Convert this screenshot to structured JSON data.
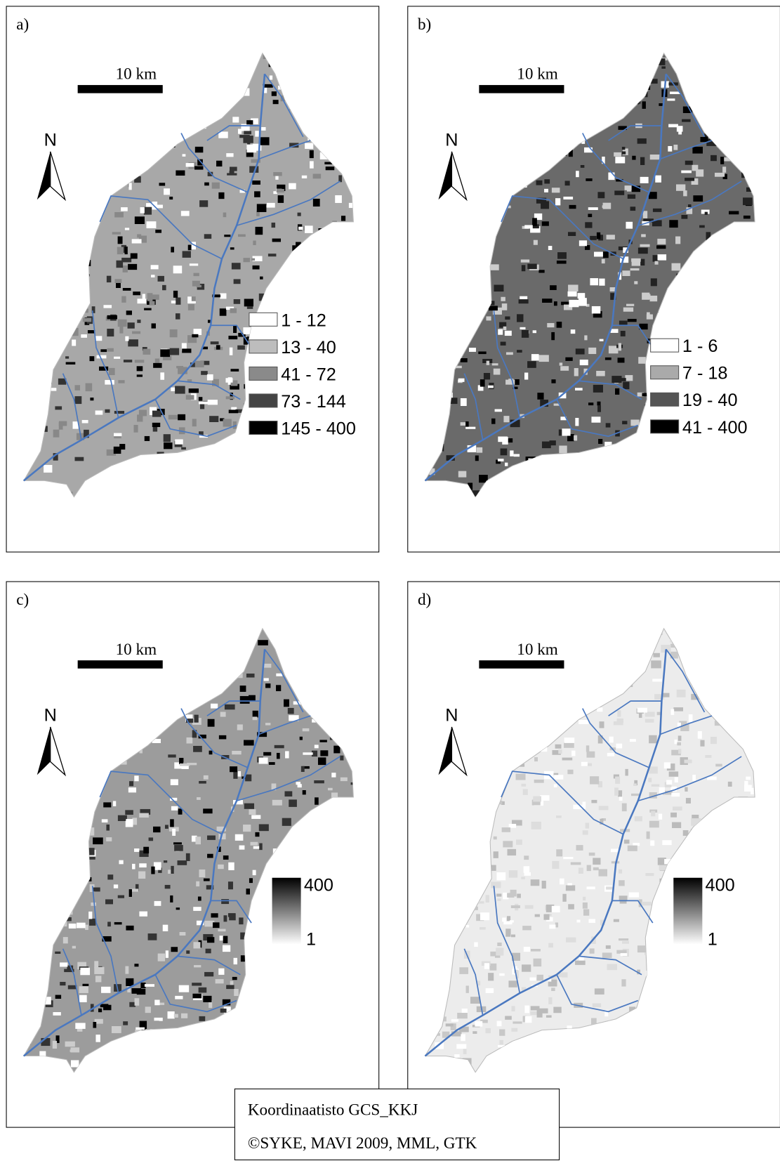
{
  "panels": [
    {
      "label": "a)",
      "scale_bar": "10 km",
      "north": "N",
      "legend": [
        "1 - 12",
        "13 - 40",
        "41 - 72",
        "73 - 144",
        "145 - 400"
      ]
    },
    {
      "label": "b)",
      "scale_bar": "10 km",
      "north": "N",
      "legend": [
        "1 - 6",
        "7 - 18",
        "19 - 40",
        "41 - 400"
      ]
    },
    {
      "label": "c)",
      "scale_bar": "10 km",
      "north": "N",
      "legend_max": "400",
      "legend_min": "1"
    },
    {
      "label": "d)",
      "scale_bar": "10 km",
      "north": "N",
      "legend_max": "400",
      "legend_min": "1"
    }
  ],
  "credits": [
    "Koordinaatisto GCS_KKJ",
    "©SYKE, MAVI 2009, MML, GTK"
  ]
}
